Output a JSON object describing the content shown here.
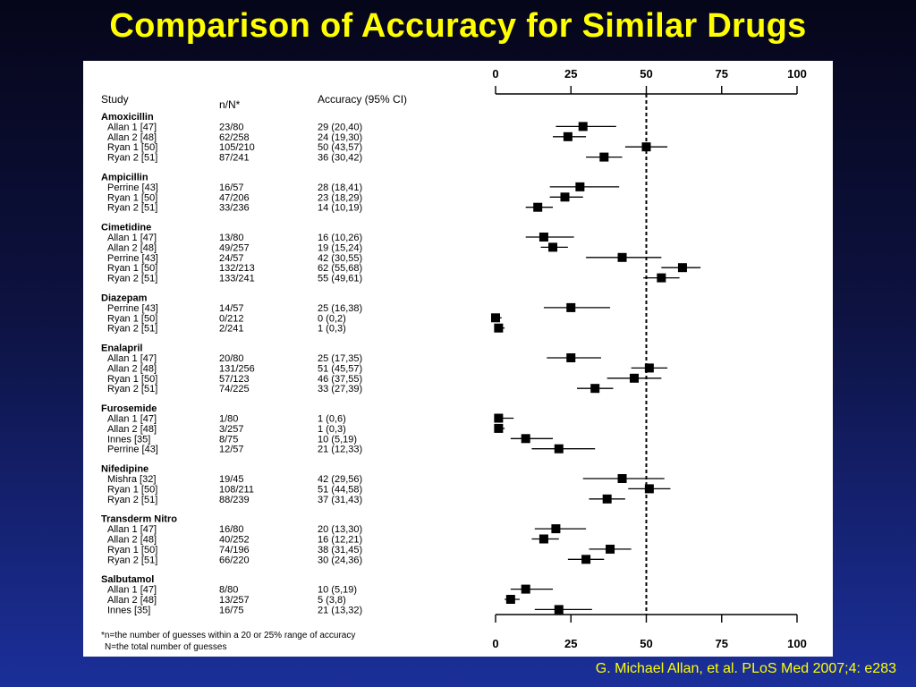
{
  "title": "Comparison of Accuracy for Similar Drugs",
  "citation": "G. Michael Allan, et al. PLoS Med 2007;4: e283",
  "colors": {
    "title": "#ffff00",
    "citation": "#ffff00",
    "marker": "#000000"
  },
  "chart_data": {
    "type": "forest",
    "columns": {
      "study": "Study",
      "n": "n/N*",
      "accuracy": "Accuracy (95% CI)"
    },
    "axis": {
      "min": 0,
      "max": 100,
      "ticks": [
        0,
        25,
        50,
        75,
        100
      ],
      "reference": 50,
      "reference_style": "dashed"
    },
    "groups": [
      {
        "name": "Amoxicillin",
        "rows": [
          {
            "study": "Allan 1 [47]",
            "n": "23/80",
            "ci_text": "29 (20,40)",
            "est": 29,
            "lo": 20,
            "hi": 40
          },
          {
            "study": "Allan 2 [48]",
            "n": "62/258",
            "ci_text": "24 (19,30)",
            "est": 24,
            "lo": 19,
            "hi": 30
          },
          {
            "study": "Ryan 1 [50]",
            "n": "105/210",
            "ci_text": "50 (43,57)",
            "est": 50,
            "lo": 43,
            "hi": 57
          },
          {
            "study": "Ryan 2 [51]",
            "n": "87/241",
            "ci_text": "36 (30,42)",
            "est": 36,
            "lo": 30,
            "hi": 42
          }
        ]
      },
      {
        "name": "Ampicillin",
        "rows": [
          {
            "study": "Perrine [43]",
            "n": "16/57",
            "ci_text": "28 (18,41)",
            "est": 28,
            "lo": 18,
            "hi": 41
          },
          {
            "study": "Ryan 1 [50]",
            "n": "47/206",
            "ci_text": "23 (18,29)",
            "est": 23,
            "lo": 18,
            "hi": 29
          },
          {
            "study": "Ryan 2 [51]",
            "n": "33/236",
            "ci_text": "14 (10,19)",
            "est": 14,
            "lo": 10,
            "hi": 19
          }
        ]
      },
      {
        "name": "Cimetidine",
        "rows": [
          {
            "study": "Allan 1 [47]",
            "n": "13/80",
            "ci_text": "16 (10,26)",
            "est": 16,
            "lo": 10,
            "hi": 26
          },
          {
            "study": "Allan 2 [48]",
            "n": "49/257",
            "ci_text": "19 (15,24)",
            "est": 19,
            "lo": 15,
            "hi": 24
          },
          {
            "study": "Perrine [43]",
            "n": "24/57",
            "ci_text": "42 (30,55)",
            "est": 42,
            "lo": 30,
            "hi": 55
          },
          {
            "study": "Ryan 1 [50]",
            "n": "132/213",
            "ci_text": "62 (55,68)",
            "est": 62,
            "lo": 55,
            "hi": 68
          },
          {
            "study": "Ryan 2 [51]",
            "n": "133/241",
            "ci_text": "55 (49,61)",
            "est": 55,
            "lo": 49,
            "hi": 61
          }
        ]
      },
      {
        "name": "Diazepam",
        "rows": [
          {
            "study": "Perrine [43]",
            "n": "14/57",
            "ci_text": "25 (16,38)",
            "est": 25,
            "lo": 16,
            "hi": 38
          },
          {
            "study": "Ryan 1 [50]",
            "n": "0/212",
            "ci_text": "0 (0,2)",
            "est": 0,
            "lo": 0,
            "hi": 2
          },
          {
            "study": "Ryan 2 [51]",
            "n": "2/241",
            "ci_text": "1 (0,3)",
            "est": 1,
            "lo": 0,
            "hi": 3
          }
        ]
      },
      {
        "name": "Enalapril",
        "rows": [
          {
            "study": "Allan 1 [47]",
            "n": "20/80",
            "ci_text": "25 (17,35)",
            "est": 25,
            "lo": 17,
            "hi": 35
          },
          {
            "study": "Allan 2 [48]",
            "n": "131/256",
            "ci_text": "51 (45,57)",
            "est": 51,
            "lo": 45,
            "hi": 57
          },
          {
            "study": "Ryan 1 [50]",
            "n": "57/123",
            "ci_text": "46 (37,55)",
            "est": 46,
            "lo": 37,
            "hi": 55
          },
          {
            "study": "Ryan 2 [51]",
            "n": "74/225",
            "ci_text": "33 (27,39)",
            "est": 33,
            "lo": 27,
            "hi": 39
          }
        ]
      },
      {
        "name": "Furosemide",
        "rows": [
          {
            "study": "Allan 1 [47]",
            "n": "1/80",
            "ci_text": "1 (0,6)",
            "est": 1,
            "lo": 0,
            "hi": 6
          },
          {
            "study": "Allan 2 [48]",
            "n": "3/257",
            "ci_text": "1 (0,3)",
            "est": 1,
            "lo": 0,
            "hi": 3
          },
          {
            "study": "Innes [35]",
            "n": "8/75",
            "ci_text": "10 (5,19)",
            "est": 10,
            "lo": 5,
            "hi": 19
          },
          {
            "study": "Perrine [43]",
            "n": "12/57",
            "ci_text": "21 (12,33)",
            "est": 21,
            "lo": 12,
            "hi": 33
          }
        ]
      },
      {
        "name": "Nifedipine",
        "rows": [
          {
            "study": "Mishra [32]",
            "n": "19/45",
            "ci_text": "42 (29,56)",
            "est": 42,
            "lo": 29,
            "hi": 56
          },
          {
            "study": "Ryan 1 [50]",
            "n": "108/211",
            "ci_text": "51 (44,58)",
            "est": 51,
            "lo": 44,
            "hi": 58
          },
          {
            "study": "Ryan 2 [51]",
            "n": "88/239",
            "ci_text": "37 (31,43)",
            "est": 37,
            "lo": 31,
            "hi": 43
          }
        ]
      },
      {
        "name": "Transderm Nitro",
        "rows": [
          {
            "study": "Allan 1 [47]",
            "n": "16/80",
            "ci_text": "20 (13,30)",
            "est": 20,
            "lo": 13,
            "hi": 30
          },
          {
            "study": "Allan 2 [48]",
            "n": "40/252",
            "ci_text": "16 (12,21)",
            "est": 16,
            "lo": 12,
            "hi": 21
          },
          {
            "study": "Ryan 1 [50]",
            "n": "74/196",
            "ci_text": "38 (31,45)",
            "est": 38,
            "lo": 31,
            "hi": 45
          },
          {
            "study": "Ryan 2 [51]",
            "n": "66/220",
            "ci_text": "30 (24,36)",
            "est": 30,
            "lo": 24,
            "hi": 36
          }
        ]
      },
      {
        "name": "Salbutamol",
        "rows": [
          {
            "study": "Allan 1 [47]",
            "n": "8/80",
            "ci_text": "10 (5,19)",
            "est": 10,
            "lo": 5,
            "hi": 19
          },
          {
            "study": "Allan 2 [48]",
            "n": "13/257",
            "ci_text": "5 (3,8)",
            "est": 5,
            "lo": 3,
            "hi": 8
          },
          {
            "study": "Innes [35]",
            "n": "16/75",
            "ci_text": "21 (13,32)",
            "est": 21,
            "lo": 13,
            "hi": 32
          }
        ]
      }
    ],
    "footnote": [
      "*n=the number of guesses within a 20 or 25% range of accuracy",
      "N=the total number of guesses"
    ]
  }
}
